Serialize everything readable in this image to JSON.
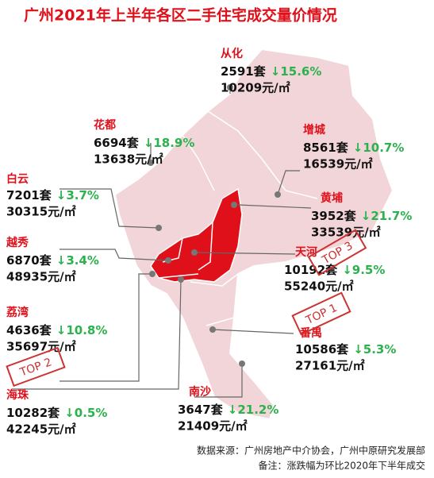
{
  "title": "广州2021年上半年各区二手住宅成交量价情况",
  "districts": [
    {
      "name": "从化",
      "units": "2591套",
      "change": "↓15.6%",
      "price": "10209元/㎡"
    },
    {
      "name": "花都",
      "units": "6694套",
      "change": "↓18.9%",
      "price": "13638元/㎡"
    },
    {
      "name": "增城",
      "units": "8561套",
      "change": "↓10.7%",
      "price": "16539元/㎡"
    },
    {
      "name": "白云",
      "units": "7201套",
      "change": "↓3.7%",
      "price": "30315元/㎡"
    },
    {
      "name": "黄埔",
      "units": "3952套",
      "change": "↓21.7%",
      "price": "33539元/㎡"
    },
    {
      "name": "越秀",
      "units": "6870套",
      "change": "↓3.4%",
      "price": "48935元/㎡"
    },
    {
      "name": "天河",
      "units": "10192套",
      "change": "↓9.5%",
      "price": "55240元/㎡"
    },
    {
      "name": "荔湾",
      "units": "4636套",
      "change": "↓10.8%",
      "price": "35697元/㎡"
    },
    {
      "name": "番禺",
      "units": "10586套",
      "change": "↓5.3%",
      "price": "27161元/㎡"
    },
    {
      "name": "海珠",
      "units": "10282套",
      "change": "↓0.5%",
      "price": "42245元/㎡"
    },
    {
      "name": "南沙",
      "units": "3647套",
      "change": "↓21.2%",
      "price": "21409元/㎡"
    }
  ],
  "badges": [
    "TOP 1",
    "TOP 2",
    "TOP 3"
  ],
  "source": "数据来源：广州房地产中介协会，广州中原研究发展部",
  "note": "备注：涨跌幅为环比2020年下半年成交"
}
